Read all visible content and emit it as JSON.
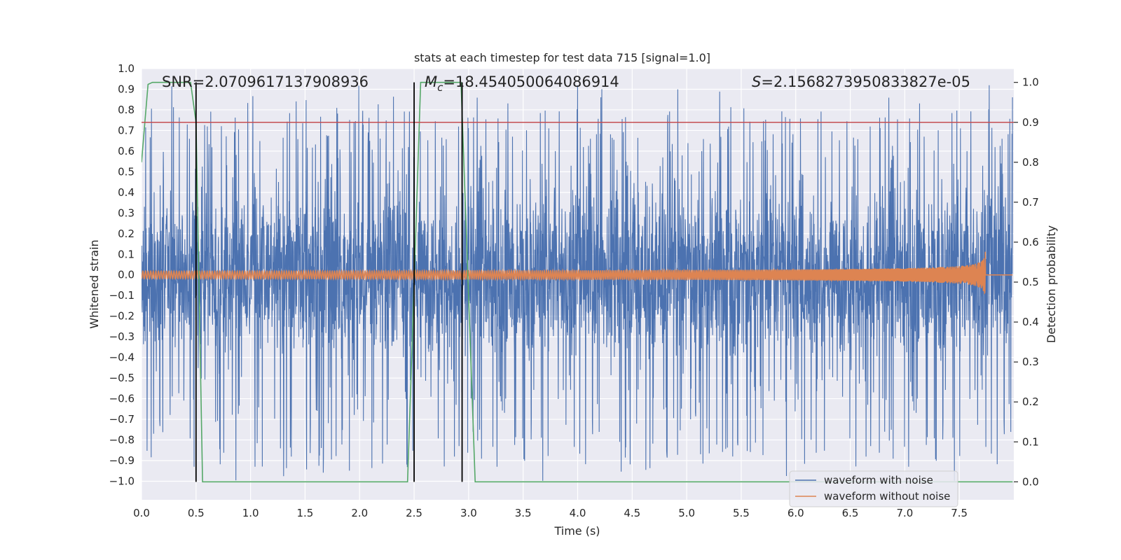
{
  "chart_data": {
    "type": "line",
    "title": "stats at each timestep for test data 715 [signal=1.0]",
    "xlabel": "Time (s)",
    "ylabel": "Whitened strain",
    "y2label": "Detection probability",
    "xlim": [
      0.0,
      8.0
    ],
    "ylim": [
      -1.09,
      1.0
    ],
    "y2lim": [
      -0.045,
      1.0345
    ],
    "xticks": [
      "0.0",
      "0.5",
      "1.0",
      "1.5",
      "2.0",
      "2.5",
      "3.0",
      "3.5",
      "4.0",
      "4.5",
      "5.0",
      "5.5",
      "6.0",
      "6.5",
      "7.0",
      "7.5"
    ],
    "yticks": [
      "1.0",
      "0.9",
      "0.8",
      "0.7",
      "0.6",
      "0.5",
      "0.4",
      "0.3",
      "0.2",
      "0.1",
      "0.0",
      "−0.1",
      "−0.2",
      "−0.3",
      "−0.4",
      "−0.5",
      "−0.6",
      "−0.7",
      "−0.8",
      "−0.9",
      "−1.0"
    ],
    "y2ticks": [
      "1.0",
      "0.9",
      "0.8",
      "0.7",
      "0.6",
      "0.5",
      "0.4",
      "0.3",
      "0.2",
      "0.1",
      "0.0"
    ],
    "grid": true,
    "legend_position": "lower-right",
    "annotations": {
      "snr": "SNR=2.0709617137908936",
      "mc_symbol": "M",
      "mc_sub": "c",
      "mc_value": "=18.454050064086914",
      "s_symbol": "S",
      "s_value": "=2.1568273950833827e-05"
    },
    "series": [
      {
        "name": "waveform with noise",
        "color": "#4c72b0",
        "kind": "noise",
        "range": [
          -0.45,
          0.4
        ],
        "peaks_high": [
          0.82,
          0.92
        ],
        "peaks_low": [
          -1.0,
          -0.95
        ]
      },
      {
        "name": "waveform without noise",
        "color": "#dd8452",
        "kind": "chirp",
        "merger_time": 7.74,
        "peak_amplitude": 0.13
      },
      {
        "color": "#55a868",
        "axis": "right",
        "x": [
          0.0,
          0.06,
          0.1,
          0.2,
          0.3,
          0.38,
          0.45,
          0.5,
          0.56,
          1.0,
          2.0,
          2.44,
          2.5,
          2.56,
          2.9,
          2.93,
          3.06,
          4.0,
          5.0,
          6.0,
          7.0,
          7.99
        ],
        "y": [
          0.8,
          0.995,
          1.0,
          1.0,
          1.0,
          1.0,
          1.0,
          0.9,
          0.0,
          0.0,
          0.0,
          0.0,
          0.5,
          1.0,
          1.0,
          1.0,
          0.0,
          0.0,
          0.0,
          0.0,
          0.0,
          0.0
        ]
      },
      {
        "color": "#c44e52",
        "axis": "right",
        "kind": "threshold",
        "value": 0.9
      }
    ],
    "vlines": [
      0.5,
      2.5,
      2.94
    ],
    "vline_color": "#000000"
  }
}
